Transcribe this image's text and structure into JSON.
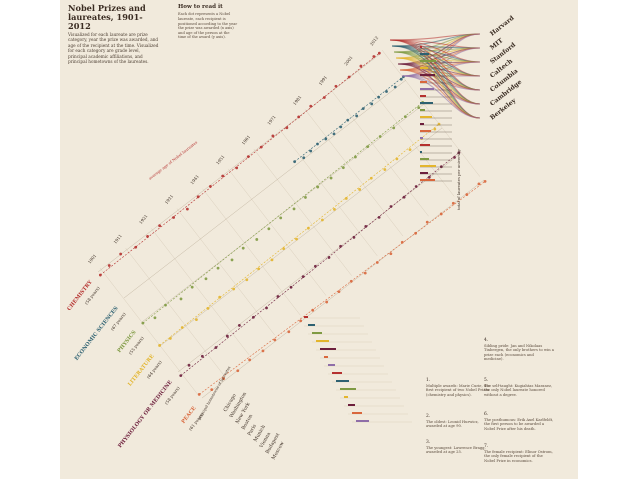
{
  "title": "Nobel Prizes and laureates, 1901-2012",
  "description": "Visualized for each laureate are prize category, year the prize was awarded, and age of the recipient at the time. Visualized for each category are grade level, principal academic affiliations, and principal hometowns of the laureates.",
  "how_to_read": {
    "heading": "How to read it",
    "body": "Each dot represents a Nobel laureate, each recipient is positioned according to the year the prize was awarded (x axis) and age of the person at the time of the award (y axis)."
  },
  "colors": {
    "background": "#f1eadc",
    "chemistry": "#b5312f",
    "economic_sciences": "#2e6171",
    "physics": "#7f9a43",
    "literature": "#e3b52d",
    "physiology_or_medicine": "#6d1f3c",
    "peace": "#d9673c",
    "grid": "#cfc2ad",
    "ink": "#3a2c22"
  },
  "chart_data": {
    "type": "scatter",
    "x_label": "year",
    "y_label": "age",
    "xlim": [
      1901,
      2012
    ],
    "series": [
      {
        "name": "CHEMISTRY",
        "age_label": "(58 years)",
        "color": "#b5312f",
        "points": [
          [
            1901,
            49
          ],
          [
            1905,
            55
          ],
          [
            1910,
            61
          ],
          [
            1915,
            50
          ],
          [
            1920,
            54
          ],
          [
            1925,
            57
          ],
          [
            1930,
            51
          ],
          [
            1935,
            46
          ],
          [
            1940,
            55
          ],
          [
            1945,
            57
          ],
          [
            1950,
            59
          ],
          [
            1955,
            53
          ],
          [
            1960,
            58
          ],
          [
            1965,
            57
          ],
          [
            1970,
            62
          ],
          [
            1975,
            56
          ],
          [
            1980,
            60
          ],
          [
            1985,
            63
          ],
          [
            1990,
            59
          ],
          [
            1995,
            64
          ],
          [
            2000,
            62
          ],
          [
            2005,
            66
          ],
          [
            2010,
            65
          ],
          [
            2012,
            63
          ]
        ]
      },
      {
        "name": "ECONOMIC SCIENCES",
        "age_label": "(67 years)",
        "color": "#2e6171",
        "points": [
          [
            1969,
            70
          ],
          [
            1972,
            63
          ],
          [
            1975,
            66
          ],
          [
            1978,
            70
          ],
          [
            1981,
            67
          ],
          [
            1984,
            64
          ],
          [
            1987,
            68
          ],
          [
            1990,
            71
          ],
          [
            1993,
            65
          ],
          [
            1996,
            70
          ],
          [
            1999,
            66
          ],
          [
            2002,
            69
          ],
          [
            2005,
            68
          ],
          [
            2008,
            63
          ],
          [
            2011,
            70
          ],
          [
            2012,
            72
          ]
        ]
      },
      {
        "name": "PHYSICS",
        "age_label": "(55 years)",
        "color": "#7f9a43",
        "points": [
          [
            1901,
            56
          ],
          [
            1905,
            47
          ],
          [
            1910,
            57
          ],
          [
            1915,
            44
          ],
          [
            1920,
            51
          ],
          [
            1925,
            46
          ],
          [
            1930,
            49
          ],
          [
            1935,
            43
          ],
          [
            1940,
            50
          ],
          [
            1945,
            46
          ],
          [
            1950,
            49
          ],
          [
            1955,
            53
          ],
          [
            1960,
            50
          ],
          [
            1965,
            56
          ],
          [
            1970,
            58
          ],
          [
            1975,
            55
          ],
          [
            1980,
            57
          ],
          [
            1985,
            60
          ],
          [
            1990,
            62
          ],
          [
            1995,
            63
          ],
          [
            2000,
            59
          ],
          [
            2005,
            64
          ],
          [
            2010,
            61
          ],
          [
            2012,
            66
          ]
        ]
      },
      {
        "name": "LITERATURE",
        "age_label": "(64 years)",
        "color": "#e3b52d",
        "points": [
          [
            1901,
            62
          ],
          [
            1905,
            59
          ],
          [
            1910,
            63
          ],
          [
            1915,
            56
          ],
          [
            1920,
            61
          ],
          [
            1925,
            66
          ],
          [
            1930,
            60
          ],
          [
            1935,
            58
          ],
          [
            1940,
            62
          ],
          [
            1945,
            59
          ],
          [
            1950,
            64
          ],
          [
            1955,
            63
          ],
          [
            1960,
            67
          ],
          [
            1965,
            61
          ],
          [
            1970,
            64
          ],
          [
            1975,
            68
          ],
          [
            1980,
            65
          ],
          [
            1985,
            70
          ],
          [
            1990,
            66
          ],
          [
            1995,
            69
          ],
          [
            2000,
            67
          ],
          [
            2005,
            72
          ],
          [
            2010,
            70
          ],
          [
            2012,
            74
          ]
        ]
      },
      {
        "name": "PHYSIOLOGY OR MEDICINE",
        "age_label": "(58 years)",
        "color": "#6d1f3c",
        "points": [
          [
            1901,
            47
          ],
          [
            1905,
            56
          ],
          [
            1910,
            53
          ],
          [
            1915,
            49
          ],
          [
            1920,
            55
          ],
          [
            1925,
            58
          ],
          [
            1930,
            52
          ],
          [
            1935,
            50
          ],
          [
            1940,
            56
          ],
          [
            1945,
            54
          ],
          [
            1950,
            57
          ],
          [
            1955,
            59
          ],
          [
            1960,
            55
          ],
          [
            1965,
            60
          ],
          [
            1970,
            57
          ],
          [
            1975,
            61
          ],
          [
            1980,
            58
          ],
          [
            1985,
            62
          ],
          [
            1990,
            60
          ],
          [
            1995,
            63
          ],
          [
            2000,
            61
          ],
          [
            2005,
            64
          ],
          [
            2010,
            62
          ],
          [
            2012,
            65
          ]
        ]
      },
      {
        "name": "PEACE",
        "age_label": "(61 years)",
        "color": "#d9673c",
        "points": [
          [
            1901,
            73
          ],
          [
            1905,
            62
          ],
          [
            1910,
            66
          ],
          [
            1915,
            59
          ],
          [
            1920,
            63
          ],
          [
            1925,
            60
          ],
          [
            1930,
            64
          ],
          [
            1935,
            58
          ],
          [
            1940,
            62
          ],
          [
            1945,
            65
          ],
          [
            1950,
            59
          ],
          [
            1955,
            61
          ],
          [
            1960,
            63
          ],
          [
            1965,
            57
          ],
          [
            1970,
            60
          ],
          [
            1975,
            56
          ],
          [
            1980,
            62
          ],
          [
            1985,
            59
          ],
          [
            1990,
            64
          ],
          [
            1995,
            58
          ],
          [
            2000,
            61
          ],
          [
            2005,
            57
          ],
          [
            2010,
            60
          ],
          [
            2012,
            55
          ]
        ]
      }
    ],
    "year_ticks": [
      "1901",
      "1911",
      "1921",
      "1931",
      "1941",
      "1951",
      "1961",
      "1971",
      "1981",
      "1991",
      "2001",
      "2012"
    ],
    "universities": [
      "Harvard",
      "MIT",
      "Stanford",
      "Caltech",
      "Columbia",
      "Cambridge",
      "Berkeley"
    ],
    "hometowns_heading": "principal hometowns of laureates",
    "hometowns": [
      "Chicago",
      "Washington",
      "New York",
      "Boston",
      "Paris",
      "Munich",
      "Vienna",
      "Budapest",
      "Moscow"
    ],
    "age_bands": [
      "average age of Nobel laureates"
    ],
    "right_axis_label": "total of laureates per university"
  },
  "notes": [
    {
      "num": "1.",
      "text": "Multiple awards: Marie Curie, the first recipient of two Nobel Prizes (chemistry and physics)."
    },
    {
      "num": "2.",
      "text": "The oldest: Leonid Hurwicz, awarded at age 90."
    },
    {
      "num": "3.",
      "text": "The youngest: Lawrence Bragg, awarded at age 25."
    },
    {
      "num": "4.",
      "text": "Sibling pride: Jan and Nikolaas Tinbergen, the only brothers to win a prize each (economics and medicine)."
    },
    {
      "num": "5.",
      "text": "The self-taught: Kugiahtas Maranez, the only Nobel laureate honored without a degree."
    },
    {
      "num": "6.",
      "text": "The posthumous: Erik Axel Karlfeldt, the first person to be awarded a Nobel Prize after his death."
    },
    {
      "num": "7.",
      "text": "The female recipient: Elinor Ostrom, the only female recipient of the Nobel Prize in economics."
    }
  ]
}
